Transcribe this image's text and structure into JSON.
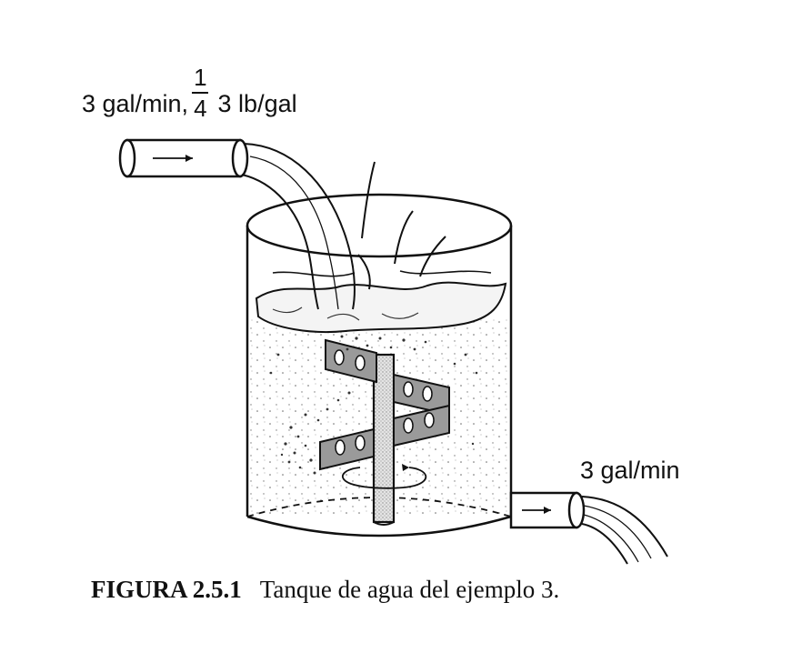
{
  "inflow": {
    "rate": "3 gal/min,",
    "fraction_numerator": "1",
    "fraction_denominator": "4",
    "concentration": "3 lb/gal"
  },
  "outflow": {
    "rate": "3 gal/min"
  },
  "caption": {
    "figure_number": "FIGURA 2.5.1",
    "text": "Tanque de agua del ejemplo 3."
  },
  "colors": {
    "ink": "#111111",
    "background": "#ffffff",
    "water_stipple": "#555555",
    "shaft_fill": "#cfcfcf"
  }
}
